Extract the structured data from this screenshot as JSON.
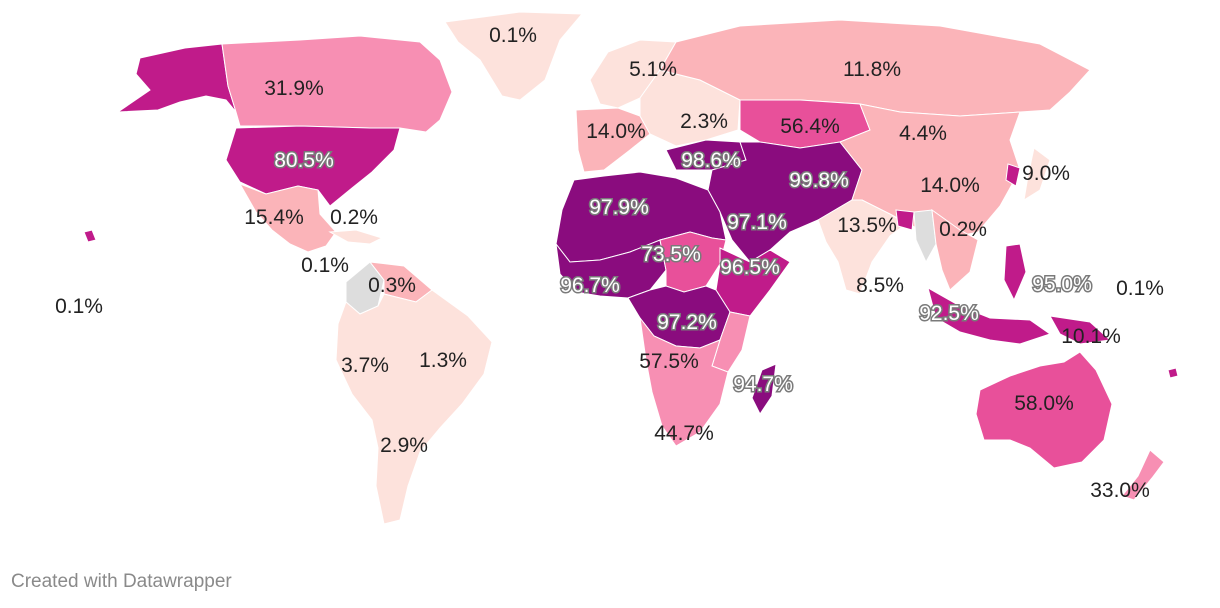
{
  "credit": "Created with Datawrapper",
  "colors": {
    "c1": "#fde2dc",
    "c2": "#fbb4b9",
    "c3": "#f78fb3",
    "c4": "#e8509a",
    "c5": "#c01b8a",
    "c6": "#8a0c7e",
    "nodata": "#dddddd"
  },
  "labels": [
    {
      "id": "greenland",
      "text": "0.1%"
    },
    {
      "id": "canada",
      "text": "31.9%"
    },
    {
      "id": "usa",
      "text": "80.5%"
    },
    {
      "id": "mexico",
      "text": "15.4%"
    },
    {
      "id": "cuba",
      "text": "0.2%"
    },
    {
      "id": "central-america",
      "text": "0.1%"
    },
    {
      "id": "pacific",
      "text": "0.1%"
    },
    {
      "id": "colombia",
      "text": "0.3%"
    },
    {
      "id": "peru",
      "text": "3.7%"
    },
    {
      "id": "brazil",
      "text": "1.3%"
    },
    {
      "id": "argentina",
      "text": "2.9%"
    },
    {
      "id": "scandinavia",
      "text": "5.1%"
    },
    {
      "id": "russia",
      "text": "11.8%"
    },
    {
      "id": "western-europe",
      "text": "14.0%"
    },
    {
      "id": "eastern-europe",
      "text": "2.3%"
    },
    {
      "id": "kazakhstan",
      "text": "56.4%"
    },
    {
      "id": "mongolia",
      "text": "4.4%"
    },
    {
      "id": "turkey",
      "text": "98.6%"
    },
    {
      "id": "iran",
      "text": "99.8%"
    },
    {
      "id": "japan",
      "text": "9.0%"
    },
    {
      "id": "china",
      "text": "14.0%"
    },
    {
      "id": "north-africa",
      "text": "97.9%"
    },
    {
      "id": "egypt",
      "text": "97.1%"
    },
    {
      "id": "bangladesh",
      "text": "13.5%"
    },
    {
      "id": "thailand",
      "text": "0.2%"
    },
    {
      "id": "chad",
      "text": "73.5%"
    },
    {
      "id": "somalia",
      "text": "96.5%"
    },
    {
      "id": "west-africa",
      "text": "96.7%"
    },
    {
      "id": "india",
      "text": "8.5%"
    },
    {
      "id": "philippines",
      "text": "95.0%"
    },
    {
      "id": "micronesia",
      "text": "0.1%"
    },
    {
      "id": "drc",
      "text": "97.2%"
    },
    {
      "id": "indonesia",
      "text": "92.5%"
    },
    {
      "id": "png",
      "text": "10.1%"
    },
    {
      "id": "angola",
      "text": "57.5%"
    },
    {
      "id": "madagascar",
      "text": "94.7%"
    },
    {
      "id": "south-africa",
      "text": "44.7%"
    },
    {
      "id": "australia",
      "text": "58.0%"
    },
    {
      "id": "new-zealand",
      "text": "33.0%"
    }
  ]
}
